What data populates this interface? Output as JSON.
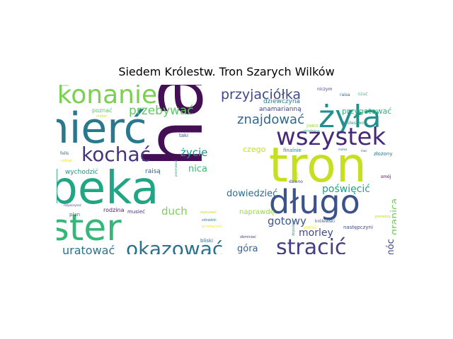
{
  "chart_data": {
    "type": "wordcloud",
    "title": "Siedem Królestw. Tron Szarych Wilków",
    "background": "#ffffff",
    "colormap": "viridis",
    "words": [
      {
        "text": "han",
        "weight": 100,
        "color": "#440f55"
      },
      {
        "text": "tron",
        "weight": 62,
        "color": "#c6e021"
      },
      {
        "text": "rebeka",
        "weight": 58,
        "color": "#21a685"
      },
      {
        "text": "śmierć",
        "weight": 55,
        "color": "#2a788e"
      },
      {
        "text": "alister",
        "weight": 48,
        "color": "#35b779"
      },
      {
        "text": "długo",
        "weight": 44,
        "color": "#3b528b"
      },
      {
        "text": "żyła",
        "weight": 42,
        "color": "#218f8d"
      },
      {
        "text": "przekonanie",
        "weight": 38,
        "color": "#7ad151"
      },
      {
        "text": "wszystek",
        "weight": 36,
        "color": "#482878"
      },
      {
        "text": "stracić",
        "weight": 32,
        "color": "#433e85"
      },
      {
        "text": "kochać",
        "weight": 30,
        "color": "#46337e"
      },
      {
        "text": "okazować",
        "weight": 29,
        "color": "#2c728e"
      },
      {
        "text": "przyjaciółka",
        "weight": 22,
        "color": "#3e4a89"
      },
      {
        "text": "znajdować",
        "weight": 20,
        "color": "#31688e"
      },
      {
        "text": "przebywać",
        "weight": 19,
        "color": "#5ec962"
      },
      {
        "text": "uratować",
        "weight": 17,
        "color": "#2c728e"
      },
      {
        "text": "gotowy",
        "weight": 17,
        "color": "#39568c"
      },
      {
        "text": "życie",
        "weight": 16,
        "color": "#20928c"
      },
      {
        "text": "duch",
        "weight": 15,
        "color": "#7ad151"
      },
      {
        "text": "granica",
        "weight": 14,
        "color": "#6ece58"
      },
      {
        "text": "morley",
        "weight": 14,
        "color": "#3e4a89"
      },
      {
        "text": "poświęcić",
        "weight": 14,
        "color": "#1fa188"
      },
      {
        "text": "dowiedzieć",
        "weight": 13,
        "color": "#2f6c8e"
      },
      {
        "text": "nica",
        "weight": 13,
        "color": "#3aba76"
      },
      {
        "text": "góra",
        "weight": 13,
        "color": "#355f8d"
      },
      {
        "text": "móc",
        "weight": 13,
        "color": "#3e4989"
      },
      {
        "text": "przygotować",
        "weight": 10,
        "color": "#2eb37c"
      },
      {
        "text": "czego",
        "weight": 10,
        "color": "#c2df23"
      },
      {
        "text": "naprawdę",
        "weight": 9,
        "color": "#9bd93c"
      },
      {
        "text": "dziewczyna",
        "weight": 9,
        "color": "#287d8e"
      },
      {
        "text": "anamarianną",
        "weight": 9,
        "color": "#414487"
      },
      {
        "text": "wychodzić",
        "weight": 9,
        "color": "#1f948c"
      },
      {
        "text": "raisą",
        "weight": 9,
        "color": "#365c8d"
      },
      {
        "text": "poznać",
        "weight": 8,
        "color": "#56c667"
      },
      {
        "text": "rodzina",
        "weight": 8,
        "color": "#481f70"
      },
      {
        "text": "plan",
        "weight": 7,
        "color": "#2a788e"
      },
      {
        "text": "musieć",
        "weight": 7,
        "color": "#472d7b"
      },
      {
        "text": "bliski",
        "weight": 7,
        "color": "#31688e"
      },
      {
        "text": "jawa",
        "weight": 7,
        "color": "#a0da39"
      },
      {
        "text": "następczyni",
        "weight": 7,
        "color": "#3e4a89"
      },
      {
        "text": "finalnie",
        "weight": 7,
        "color": "#25838e"
      },
      {
        "text": "złożony",
        "weight": 7,
        "color": "#2c728e"
      },
      {
        "text": "taki",
        "weight": 7,
        "color": "#3b528b"
      },
      {
        "text": "fells",
        "weight": 6,
        "color": "#2c728e"
      },
      {
        "text": "dawno",
        "weight": 6,
        "color": "#414487"
      },
      {
        "text": "smój",
        "weight": 6,
        "color": "#440154"
      },
      {
        "text": "zostać",
        "weight": 6,
        "color": "#fde725"
      },
      {
        "text": "królewski",
        "weight": 6,
        "color": "#33638d"
      },
      {
        "text": "niczym",
        "weight": 6,
        "color": "#443983"
      },
      {
        "text": "raisa",
        "weight": 6,
        "color": "#31688e"
      },
      {
        "text": "czuć",
        "weight": 6,
        "color": "#3aba76"
      },
      {
        "text": "królestwo",
        "weight": 6,
        "color": "#1f9e89"
      },
      {
        "text": "obietnica",
        "weight": 5,
        "color": "#29af7f"
      },
      {
        "text": "cofnąć",
        "weight": 5,
        "color": "#e5e419"
      },
      {
        "text": "zrobić",
        "weight": 5,
        "color": "#d2e21b"
      },
      {
        "text": "wysuwać",
        "weight": 5,
        "color": "#c8e020"
      },
      {
        "text": "zdradzić",
        "weight": 5,
        "color": "#2a788e"
      },
      {
        "text": "przebaczać",
        "weight": 5,
        "color": "#fde725"
      },
      {
        "text": "obminiać",
        "weight": 5,
        "color": "#443a83"
      },
      {
        "text": "dopuścić",
        "weight": 5,
        "color": "#1fa287"
      },
      {
        "text": "pierwszy",
        "weight": 5,
        "color": "#b5de2b"
      },
      {
        "text": "tymczasem",
        "weight": 5,
        "color": "#287c8e"
      },
      {
        "text": "moc",
        "weight": 4,
        "color": "#3b528b"
      },
      {
        "text": "malka",
        "weight": 4,
        "color": "#2a788e"
      },
      {
        "text": "wiele",
        "weight": 4,
        "color": "#9fda3a"
      },
      {
        "text": "mieki",
        "weight": 4,
        "color": "#5ec962"
      },
      {
        "text": "rozpoczynać",
        "weight": 4,
        "color": "#3e4a89"
      },
      {
        "text": "przemawiać",
        "weight": 4,
        "color": "#1f9a8a"
      }
    ]
  }
}
